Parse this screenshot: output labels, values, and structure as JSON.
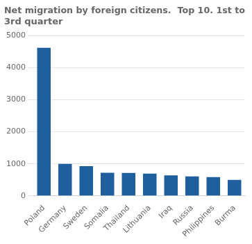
{
  "chart_data": {
    "type": "bar",
    "title": "Net migration by foreign citizens.  Top 10. 1st to\n3rd quarter",
    "categories": [
      "Poland",
      "Germany",
      "Sweden",
      "Somalia",
      "Thailand",
      "Lithuania",
      "Iraq",
      "Russia",
      "Philippines",
      "Burma"
    ],
    "values": [
      4620,
      1000,
      930,
      720,
      715,
      695,
      640,
      610,
      585,
      500
    ],
    "color": "#1f5f9e",
    "ylim": [
      0,
      5000
    ],
    "yticks": [
      0,
      1000,
      2000,
      3000,
      4000,
      5000
    ],
    "grid": true
  }
}
